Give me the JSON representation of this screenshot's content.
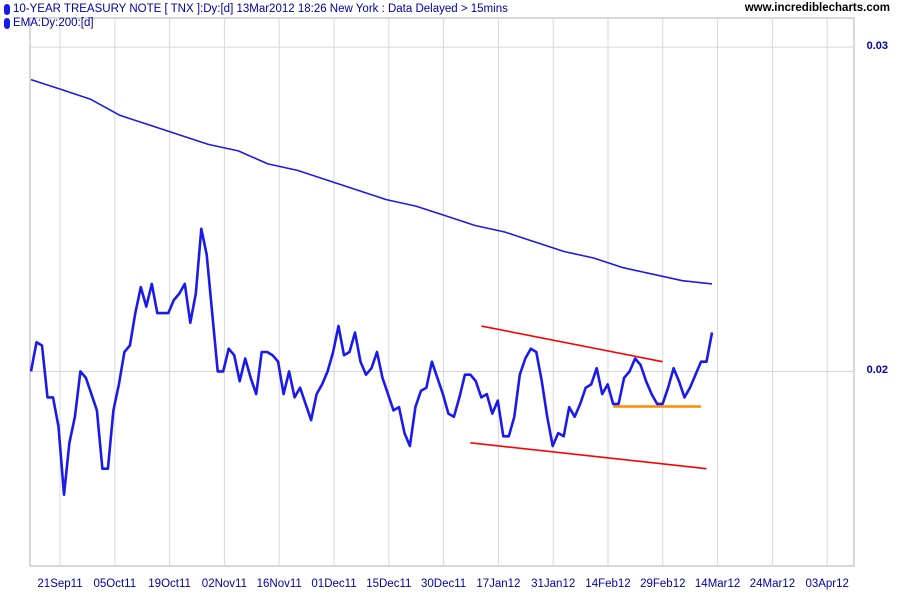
{
  "header": {
    "series_label": "10-YEAR TREASURY NOTE [ TNX ]:Dy:[d]  13Mar2012 18:26 New York : Data Delayed > 15mins",
    "ema_label": "EMA:Dy:200:[d]",
    "site": "www.incrediblecharts.com"
  },
  "colors": {
    "price": "#1a1aee",
    "ema": "#1a1aee",
    "trendline": "#ff0000",
    "support": "#ff8c00",
    "grid": "#d8d8d8",
    "axis_text": "#0000aa"
  },
  "chart_data": {
    "type": "line",
    "title": "10-YEAR TREASURY NOTE [ TNX ]:Dy:[d]",
    "xlabel": "",
    "ylabel": "",
    "ylim": [
      0.014,
      0.0309
    ],
    "yticks": [
      {
        "value": 0.03,
        "label": "0.03"
      },
      {
        "value": 0.02,
        "label": "0.02"
      }
    ],
    "xticks": [
      "21Sep11",
      "05Oct11",
      "19Oct11",
      "02Nov11",
      "16Nov11",
      "01Dec11",
      "15Dec11",
      "30Dec11",
      "17Jan12",
      "31Jan12",
      "14Feb12",
      "29Feb12",
      "14Mar12",
      "24Mar12",
      "03Apr12"
    ],
    "grid": true,
    "legend_placement": "top-left",
    "series": [
      {
        "name": "10-YEAR TREASURY NOTE [ TNX ]:Dy:[d]",
        "values": [
          0.02,
          0.0209,
          0.0208,
          0.0192,
          0.0192,
          0.0183,
          0.0162,
          0.0178,
          0.0186,
          0.02,
          0.0198,
          0.0193,
          0.0188,
          0.017,
          0.017,
          0.0188,
          0.0196,
          0.0206,
          0.0208,
          0.0218,
          0.0226,
          0.022,
          0.0227,
          0.0218,
          0.0218,
          0.0218,
          0.0222,
          0.0224,
          0.0227,
          0.0215,
          0.0224,
          0.0244,
          0.0236,
          0.0218,
          0.02,
          0.02,
          0.0207,
          0.0205,
          0.0197,
          0.0204,
          0.0198,
          0.0193,
          0.0206,
          0.0206,
          0.0205,
          0.0203,
          0.0193,
          0.02,
          0.0192,
          0.0195,
          0.019,
          0.0185,
          0.0193,
          0.0196,
          0.02,
          0.0206,
          0.0214,
          0.0205,
          0.0206,
          0.0212,
          0.0203,
          0.0199,
          0.0201,
          0.0206,
          0.0198,
          0.0193,
          0.0188,
          0.0189,
          0.0181,
          0.0177,
          0.0189,
          0.0194,
          0.0195,
          0.0203,
          0.0198,
          0.0193,
          0.0187,
          0.0186,
          0.0192,
          0.0199,
          0.0199,
          0.0197,
          0.0192,
          0.0193,
          0.0187,
          0.0191,
          0.018,
          0.018,
          0.0186,
          0.0199,
          0.0204,
          0.0207,
          0.0206,
          0.0197,
          0.0186,
          0.0177,
          0.0181,
          0.018,
          0.0189,
          0.0186,
          0.019,
          0.0195,
          0.0196,
          0.0201,
          0.0193,
          0.0196,
          0.019,
          0.019,
          0.0198,
          0.02,
          0.0204,
          0.0202,
          0.0197,
          0.0193,
          0.019,
          0.019,
          0.0195,
          0.0201,
          0.0197,
          0.0192,
          0.0195,
          0.0199,
          0.0203,
          0.0203,
          0.0212
        ]
      },
      {
        "name": "EMA:Dy:200:[d]",
        "x_start_index": 0,
        "x_end_index": 124,
        "values": [
          0.029,
          0.0287,
          0.0284,
          0.0279,
          0.0276,
          0.0273,
          0.027,
          0.0268,
          0.0264,
          0.0262,
          0.0259,
          0.0256,
          0.0253,
          0.0251,
          0.0248,
          0.0245,
          0.0243,
          0.024,
          0.0237,
          0.0235,
          0.0232,
          0.023,
          0.0228,
          0.0227
        ]
      }
    ],
    "annotations": [
      {
        "type": "trendline",
        "color": "#ff0000",
        "x_index": [
          82,
          115
        ],
        "y": [
          0.0214,
          0.0203
        ]
      },
      {
        "type": "trendline",
        "color": "#ff0000",
        "x_index": [
          80,
          123
        ],
        "y": [
          0.0178,
          0.017
        ]
      },
      {
        "type": "support",
        "color": "#ff8c00",
        "x_index": [
          106,
          122
        ],
        "y": [
          0.01892,
          0.01892
        ]
      }
    ]
  }
}
